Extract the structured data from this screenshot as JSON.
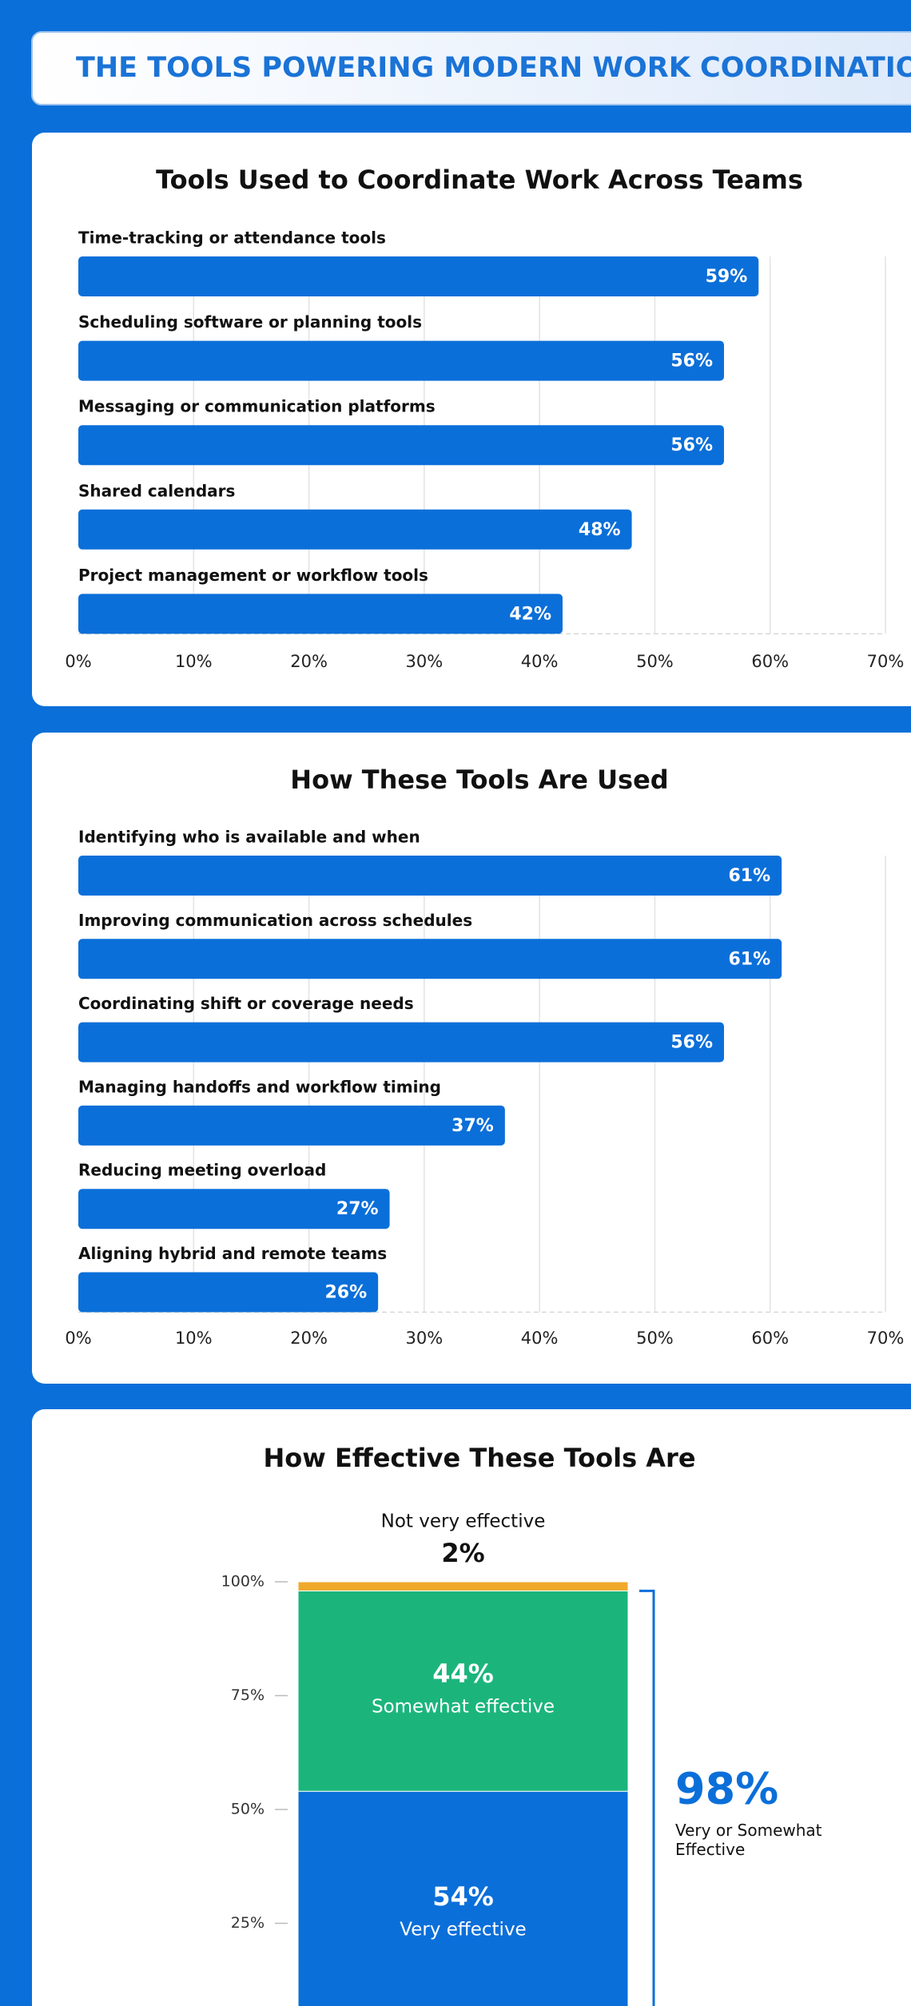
{
  "header": {
    "title": "THE TOOLS POWERING MODERN WORK COORDINATION"
  },
  "chart_data": [
    {
      "type": "bar",
      "title": "Tools Used to Coordinate Work Across Teams",
      "categories": [
        "Time-tracking or attendance tools",
        "Scheduling software or planning tools",
        "Messaging or communication platforms",
        "Shared calendars",
        "Project management or workflow tools"
      ],
      "values": [
        59,
        56,
        56,
        48,
        42
      ],
      "value_labels": [
        "59%",
        "56%",
        "56%",
        "48%",
        "42%"
      ],
      "color": "#0b6fd9",
      "xlim": [
        0,
        70
      ],
      "xticks": [
        {
          "value": 0,
          "label": "0%"
        },
        {
          "value": 10,
          "label": "10%"
        },
        {
          "value": 20,
          "label": "20%"
        },
        {
          "value": 30,
          "label": "30%"
        },
        {
          "value": 40,
          "label": "40%"
        },
        {
          "value": 50,
          "label": "50%"
        },
        {
          "value": 60,
          "label": "60%"
        },
        {
          "value": 70,
          "label": "70%"
        }
      ],
      "grid": true
    },
    {
      "type": "bar",
      "title": "How These Tools Are Used",
      "categories": [
        "Identifying who is available and when",
        "Improving communication across schedules",
        "Coordinating shift or coverage needs",
        "Managing handoffs and workflow timing",
        "Reducing meeting overload",
        "Aligning hybrid and remote teams"
      ],
      "values": [
        61,
        61,
        56,
        37,
        27,
        26
      ],
      "value_labels": [
        "61%",
        "61%",
        "56%",
        "37%",
        "27%",
        "26%"
      ],
      "color": "#0b6fd9",
      "xlim": [
        0,
        70
      ],
      "xticks": [
        {
          "value": 0,
          "label": "0%"
        },
        {
          "value": 10,
          "label": "10%"
        },
        {
          "value": 20,
          "label": "20%"
        },
        {
          "value": 30,
          "label": "30%"
        },
        {
          "value": 40,
          "label": "40%"
        },
        {
          "value": 50,
          "label": "50%"
        },
        {
          "value": 60,
          "label": "60%"
        },
        {
          "value": 70,
          "label": "70%"
        }
      ],
      "grid": true
    },
    {
      "type": "stacked_bar",
      "title": "How Effective These Tools Are",
      "series": [
        {
          "name": "Very effective",
          "color": "#0b6fd9",
          "values": [
            54
          ],
          "value_labels": [
            "54%"
          ]
        },
        {
          "name": "Somewhat effective",
          "color": "#1bb57c",
          "values": [
            44
          ],
          "value_labels": [
            "44%"
          ]
        },
        {
          "name": "Not very effective",
          "color": "#f0a92a",
          "values": [
            2
          ],
          "value_labels": [
            "2%"
          ]
        }
      ],
      "ylim": [
        0,
        100
      ],
      "yticks": [
        {
          "value": 25,
          "label": "25%"
        },
        {
          "value": 50,
          "label": "50%"
        },
        {
          "value": 75,
          "label": "75%"
        },
        {
          "value": 100,
          "label": "100%"
        }
      ],
      "annotation": {
        "value": 98,
        "label": "98%",
        "text": "Very or Somewhat Effective"
      }
    }
  ]
}
